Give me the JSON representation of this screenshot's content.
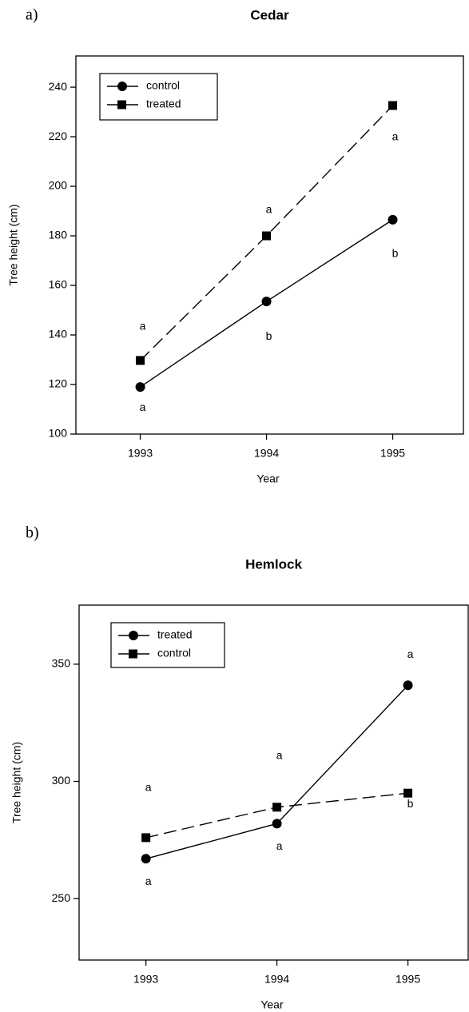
{
  "chart_data": [
    {
      "type": "line",
      "panel_label": "a)",
      "title": "Cedar",
      "x_label": "Year",
      "y_label": "Tree height (cm)",
      "x": [
        1993,
        1994,
        1995
      ],
      "series": [
        {
          "name": "control",
          "color": "#000000",
          "marker": "circle",
          "line_style": "solid",
          "values": [
            119,
            153.5,
            186.5
          ],
          "labels": [
            "a",
            "b",
            "b"
          ]
        },
        {
          "name": "treated",
          "color": "#000000",
          "marker": "square",
          "line_style": "dashed",
          "values": [
            129.7,
            180,
            232.6
          ],
          "labels": [
            "a",
            "a",
            "a"
          ]
        }
      ],
      "xlim": [
        1992.49,
        1995.56
      ],
      "xticks": [
        1993,
        1994,
        1995
      ],
      "ylim": [
        100,
        252.6
      ],
      "yticks": [
        100,
        120,
        140,
        160,
        180,
        200,
        220,
        240
      ],
      "legend": "upper left"
    },
    {
      "type": "line",
      "panel_label": "b)",
      "title": "Hemlock",
      "x_label": "Year",
      "y_label": "Tree height (cm)",
      "x": [
        1993,
        1994,
        1995
      ],
      "series": [
        {
          "name": "treated",
          "color": "#000000",
          "marker": "circle",
          "line_style": "solid",
          "values": [
            267,
            282,
            341
          ],
          "labels": [
            "a",
            "a",
            "a"
          ]
        },
        {
          "name": "control",
          "color": "#000000",
          "marker": "square",
          "line_style": "dashed",
          "values": [
            276,
            289,
            295
          ],
          "labels": [
            "a",
            "a",
            "b"
          ]
        }
      ],
      "xlim": [
        1992.49,
        1995.46
      ],
      "xticks": [
        1993,
        1994,
        1995
      ],
      "ylim": [
        223.8,
        375.2
      ],
      "yticks": [
        250,
        300,
        350
      ],
      "legend": "upper left"
    }
  ]
}
